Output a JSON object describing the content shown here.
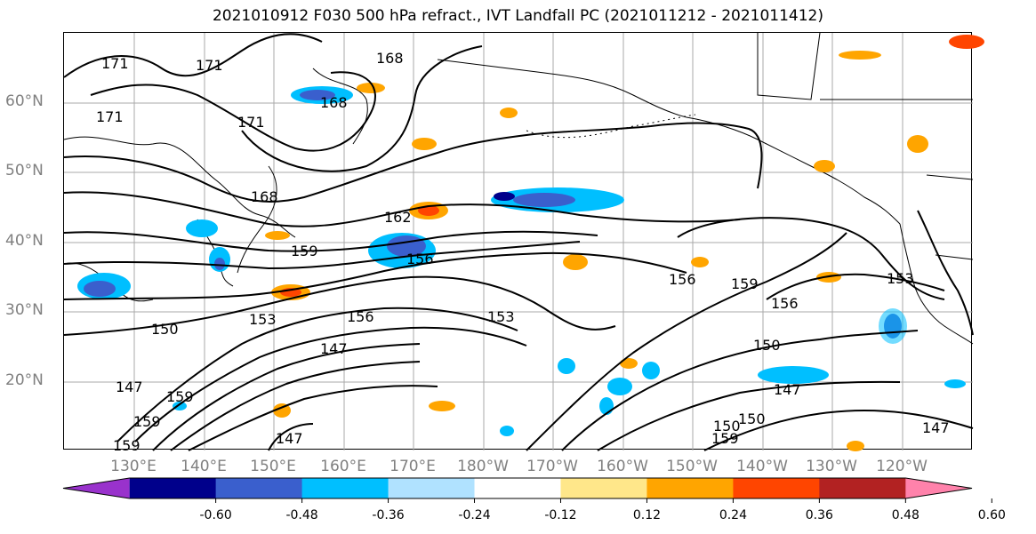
{
  "title": "2021010912 F030 500 hPa refract., IVT Landfall PC (2021011212 - 2021011412)",
  "lat_labels": [
    "60°N",
    "50°N",
    "40°N",
    "30°N",
    "20°N"
  ],
  "lon_labels": [
    "130°E",
    "140°E",
    "150°E",
    "160°E",
    "170°E",
    "180°W",
    "170°W",
    "160°W",
    "150°W",
    "140°W",
    "130°W",
    "120°W"
  ],
  "contour_labels": [
    "171",
    "171",
    "171",
    "168",
    "168",
    "171",
    "168",
    "162",
    "159",
    "156",
    "156",
    "159",
    "156",
    "153",
    "153",
    "150",
    "156",
    "153",
    "147",
    "150",
    "147",
    "147",
    "159",
    "159",
    "147",
    "150",
    "159",
    "150",
    "147",
    "159"
  ],
  "colorbar": {
    "ticks": [
      "-0.60",
      "-0.48",
      "-0.36",
      "-0.24",
      "-0.12",
      "0.12",
      "0.24",
      "0.36",
      "0.48",
      "0.60"
    ],
    "colors": [
      "#9932cc",
      "#00008b",
      "#3a5fcd",
      "#00bfff",
      "#b0e2ff",
      "#ffffff",
      "#ffe78a",
      "#ffa500",
      "#ff4500",
      "#b22222",
      "#ff82ab"
    ]
  },
  "shading_colors": {
    "neg_light": "#b0e2ff",
    "neg_mid": "#00bfff",
    "neg_strong": "#3a5fcd",
    "neg_max": "#00008b",
    "pos_light": "#ffe78a",
    "pos_mid": "#ffa500",
    "pos_strong": "#ff4500"
  }
}
